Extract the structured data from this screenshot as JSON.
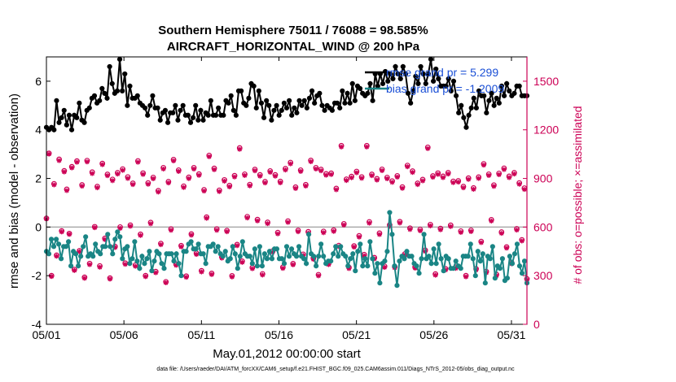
{
  "chart_data": {
    "type": "line",
    "title": "Southern Hemisphere 75011 / 76088 = 98.585%",
    "subtitle": "AIRCRAFT_HORIZONTAL_WIND @ 200 hPa",
    "xlabel": "May.01,2012 00:00:00 start",
    "ylabel": "rmse and bias (model - observation)",
    "ylabel_right": "# of obs: o=possible; ×=assimilated",
    "footer": "data file: /Users/raeder/DAI/ATM_forcXX/CAM6_setup/f.e21.FHIST_BGC.f09_025.CAM6assim.011/Diags_NTrS_2012-05/obs_diag_output.nc",
    "x_ticks": [
      "05/01",
      "05/06",
      "05/11",
      "05/16",
      "05/21",
      "05/26",
      "05/31"
    ],
    "x_tick_values": [
      1,
      6,
      11,
      16,
      21,
      26,
      31
    ],
    "xlim": [
      1,
      32
    ],
    "ylim": [
      -4,
      7
    ],
    "y_ticks": [
      "-4",
      "-2",
      "0",
      "2",
      "4",
      "6"
    ],
    "y_tick_values": [
      -4,
      -2,
      0,
      2,
      4,
      6
    ],
    "ylim_right": [
      0,
      1650
    ],
    "y_ticks_right": [
      "0",
      "300",
      "600",
      "900",
      "1200",
      "1500"
    ],
    "y_tick_values_right": [
      0,
      300,
      600,
      900,
      1200,
      1500
    ],
    "legend": [
      {
        "name": "rmse",
        "label": "rmse grand pr = 5.299"
      },
      {
        "name": "bias",
        "label": "bias grand pr = -1.2009"
      }
    ],
    "colors": {
      "rmse": "#000000",
      "bias": "#1a8585",
      "obs": "#cc0055",
      "zero": "#aaaaaa"
    },
    "series": [
      {
        "name": "rmse",
        "values": [
          4.1,
          4.0,
          4.1,
          4.0,
          5.2,
          4.3,
          4.5,
          4.8,
          4.2,
          4.6,
          4.0,
          4.6,
          4.5,
          5.1,
          4.4,
          4.3,
          4.8,
          4.9,
          5.3,
          5.4,
          5.1,
          5.2,
          5.7,
          5.5,
          5.3,
          6.6,
          5.9,
          5.5,
          5.6,
          6.9,
          5.6,
          6.3,
          5.0,
          5.8,
          5.3,
          5.3,
          5.4,
          5.1,
          5.0,
          4.9,
          4.6,
          5.0,
          5.4,
          4.9,
          4.9,
          4.4,
          4.7,
          4.8,
          4.3,
          4.7,
          4.7,
          5.0,
          4.4,
          4.8,
          5.0,
          4.6,
          4.6,
          4.3,
          4.5,
          5.0,
          4.4,
          4.8,
          4.4,
          4.7,
          4.6,
          5.2,
          4.6,
          4.6,
          4.9,
          4.6,
          4.6,
          5.2,
          5.1,
          5.4,
          4.8,
          4.6,
          5.6,
          5.6,
          5.1,
          5.0,
          5.3,
          5.9,
          5.8,
          4.9,
          5.6,
          5.1,
          4.5,
          5.2,
          5.0,
          4.4,
          4.8,
          5.0,
          4.6,
          4.8,
          5.1,
          4.9,
          5.2,
          4.6,
          4.9,
          4.7,
          5.2,
          5.0,
          5.2,
          4.9,
          5.3,
          5.6,
          5.1,
          5.4,
          5.5,
          5.0,
          4.8,
          5.0,
          4.9,
          4.8,
          5.1,
          5.1,
          4.9,
          5.6,
          5.1,
          5.5,
          5.1,
          5.9,
          5.2,
          5.8,
          5.7,
          5.5,
          5.4,
          5.5,
          5.9,
          5.2,
          6.3,
          5.8,
          6.3,
          5.9,
          6.4,
          6.0,
          6.3,
          6.1,
          6.6,
          6.3,
          6.1,
          6.6,
          6.3,
          5.5,
          5.1,
          5.6,
          6.2,
          5.9,
          6.6,
          6.3,
          5.9,
          6.3,
          6.9,
          6.0,
          6.5,
          6.1,
          5.8,
          5.8,
          5.8,
          6.1,
          5.6,
          6.0,
          5.4,
          4.7,
          5.0,
          4.5,
          4.1,
          4.6,
          4.9,
          5.3,
          4.9,
          5.6,
          5.4,
          5.4,
          4.7,
          5.2,
          5.5,
          5.0,
          5.3,
          5.1,
          5.8,
          5.4,
          5.9,
          5.6,
          5.4,
          5.5,
          5.8,
          5.8,
          5.4,
          5.4,
          5.4
        ]
      },
      {
        "name": "bias",
        "values": [
          -1.0,
          -1.1,
          -0.5,
          -0.8,
          -0.5,
          -0.7,
          -1.3,
          -0.8,
          -0.8,
          -0.6,
          -1.6,
          -1.0,
          -1.1,
          -1.6,
          -1.2,
          -0.8,
          -0.4,
          -1.2,
          -1.1,
          -1.2,
          -0.7,
          -1.0,
          -1.1,
          -0.8,
          -0.8,
          -0.3,
          -0.8,
          -1.1,
          -0.5,
          -0.2,
          -0.4,
          -1.3,
          -0.9,
          -0.8,
          -1.5,
          -1.3,
          -0.6,
          -1.4,
          -1.7,
          -1.2,
          -1.5,
          -1.3,
          -1.0,
          -1.8,
          -1.4,
          -1.0,
          -1.1,
          -1.5,
          -1.7,
          -1.1,
          -1.1,
          -1.1,
          -1.4,
          -1.1,
          -1.5,
          -2.0,
          -1.0,
          -1.0,
          -0.7,
          -0.6,
          -0.9,
          -0.9,
          -0.7,
          -1.1,
          -1.1,
          -1.5,
          -0.8,
          -0.8,
          -0.7,
          -1.0,
          -0.8,
          -1.1,
          -1.2,
          -1.0,
          -1.4,
          -1.3,
          -0.8,
          -1.1,
          -1.7,
          -1.2,
          -0.6,
          -1.1,
          -1.2,
          -1.2,
          -1.5,
          -0.9,
          -1.6,
          -0.8,
          -1.6,
          -1.1,
          -1.3,
          -1.0,
          -1.3,
          -0.9,
          -0.9,
          -1.3,
          -1.3,
          -1.5,
          -0.8,
          -1.2,
          -0.9,
          -1.1,
          -1.2,
          -0.8,
          -1.2,
          -1.3,
          -1.5,
          -0.3,
          -1.1,
          -1.2,
          -1.6,
          -1.2,
          -0.7,
          -1.2,
          -1.5,
          -1.4,
          -1.4,
          -1.1,
          -0.8,
          -1.2,
          -0.8,
          -1.1,
          -1.2,
          -1.6,
          -1.3,
          -1.1,
          -1.8,
          -1.0,
          -0.7,
          -1.6,
          -1.3,
          -1.6,
          -0.6,
          -1.3,
          -1.9,
          -1.5,
          -2.3,
          -1.5,
          -1.4,
          -1.0,
          0.6,
          -0.3,
          -1.6,
          -2.4,
          -1.4,
          -1.2,
          -1.3,
          -1.0,
          -1.2,
          -1.2,
          -1.5,
          -1.6,
          -1.9,
          -1.3,
          -0.3,
          -1.3,
          -1.2,
          -1.5,
          -0.9,
          -1.5,
          -0.7,
          -1.3,
          -1.8,
          -1.2,
          -1.3,
          -1.7,
          -1.7,
          -1.4,
          -1.6,
          -1.7,
          -1.2,
          -1.2,
          -1.2,
          -0.7,
          -1.3,
          -2.0,
          -1.0,
          -1.4,
          -1.1,
          -2.3,
          -1.2,
          -1.3,
          -0.8,
          -2.1,
          -1.6,
          -1.7,
          -1.3,
          -2.2,
          -2.1,
          -1.2,
          -1.5,
          -1.1,
          -0.7,
          -1.6,
          -1.9,
          -1.4,
          -2.3
        ]
      },
      {
        "name": "obs_possible",
        "values": [
          654,
          1055,
          300,
          867,
          426,
          1018,
          576,
          947,
          833,
          560,
          972,
          338,
          1007,
          454,
          860,
          290,
          1010,
          375,
          939,
          602,
          850,
          360,
          992,
          530,
          925,
          285,
          894,
          480,
          935,
          600,
          958,
          377,
          909,
          612,
          870,
          365,
          1008,
          555,
          933,
          300,
          872,
          628,
          906,
          325,
          824,
          498,
          966,
          262,
          880,
          588,
          1016,
          371,
          951,
          485,
          852,
          297,
          907,
          557,
          966,
          438,
          927,
          330,
          830,
          661,
          1042,
          314,
          962,
          588,
          827,
          415,
          891,
          578,
          856,
          299,
          917,
          492,
          1088,
          389,
          926,
          664,
          862,
          350,
          955,
          646,
          922,
          311,
          880,
          629,
          946,
          452,
          922,
          566,
          881,
          352,
          960,
          637,
          998,
          374,
          846,
          579,
          951,
          432,
          861,
          571,
          1011,
          408,
          966,
          306,
          955,
          573,
          928,
          375,
          932,
          581,
          838,
          486,
          1102,
          620,
          895,
          351,
          912,
          483,
          943,
          546,
          909,
          430,
          1102,
          632,
          925,
          411,
          898,
          562,
          956,
          358,
          906,
          613,
          884,
          355,
          916,
          633,
          847,
          434,
          980,
          593,
          945,
          353,
          870,
          585,
          893,
          457,
          1092,
          615,
          915,
          310,
          933,
          591,
          913,
          342,
          935,
          611,
          882,
          352,
          885,
          575,
          850,
          300,
          902,
          580,
          841,
          342,
          908,
          511,
          990,
          325,
          926,
          645,
          859,
          307,
          931,
          569,
          963,
          477,
          913,
          380,
          935,
          589,
          872,
          521,
          840,
          280
        ]
      },
      {
        "name": "obs_assimilated",
        "values": [
          650,
          1050,
          295,
          860,
          420,
          1010,
          570,
          940,
          825,
          555,
          965,
          332,
          1000,
          448,
          852,
          284,
          1002,
          368,
          930,
          596,
          842,
          352,
          985,
          523,
          917,
          279,
          886,
          474,
          927,
          592,
          950,
          370,
          900,
          605,
          862,
          358,
          1000,
          548,
          925,
          294,
          864,
          620,
          898,
          318,
          816,
          491,
          958,
          256,
          872,
          580,
          1008,
          364,
          943,
          478,
          844,
          290,
          899,
          550,
          958,
          431,
          919,
          323,
          822,
          654,
          1034,
          307,
          954,
          580,
          819,
          408,
          883,
          571,
          848,
          292,
          909,
          485,
          1080,
          382,
          918,
          656,
          854,
          343,
          947,
          638,
          914,
          304,
          872,
          621,
          938,
          445,
          914,
          558,
          873,
          345,
          952,
          629,
          990,
          367,
          838,
          571,
          943,
          425,
          853,
          563,
          1003,
          401,
          958,
          299,
          947,
          565,
          920,
          368,
          924,
          573,
          830,
          479,
          1094,
          612,
          887,
          344,
          904,
          476,
          935,
          538,
          901,
          423,
          1094,
          624,
          917,
          404,
          890,
          554,
          948,
          351,
          898,
          605,
          876,
          348,
          908,
          625,
          839,
          427,
          972,
          585,
          937,
          346,
          862,
          577,
          885,
          450,
          1084,
          607,
          907,
          303,
          925,
          583,
          905,
          335,
          927,
          603,
          874,
          345,
          877,
          567,
          842,
          293,
          894,
          572,
          833,
          335,
          900,
          504,
          982,
          318,
          918,
          637,
          851,
          300,
          923,
          561,
          955,
          470,
          905,
          373,
          927,
          581,
          864,
          514,
          832,
          273
        ]
      }
    ]
  }
}
